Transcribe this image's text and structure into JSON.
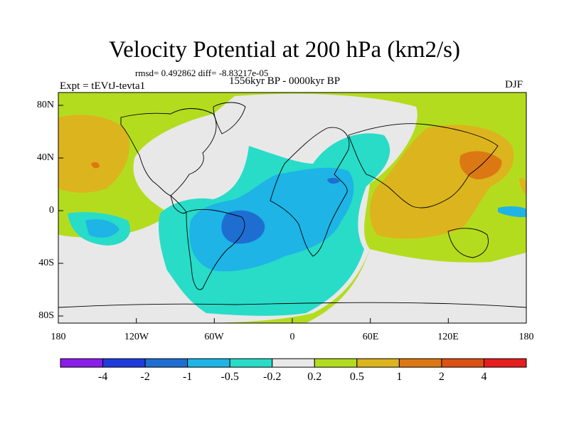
{
  "title": "Velocity Potential at 200 hPa (km2/s)",
  "stats": "rmsd= 0.492862 diff= -8.83217e-05",
  "experiment": "Expt = tEVtJ-tevta1",
  "period": "1556kyr BP - 0000kyr BP",
  "season": "DJF",
  "map": {
    "lon_ticks": [
      "180",
      "120W",
      "60W",
      "0",
      "60E",
      "120E",
      "180"
    ],
    "lat_ticks": [
      "80N",
      "40N",
      "0",
      "40S",
      "80S"
    ]
  },
  "colorbar": {
    "labels": [
      "-4",
      "-2",
      "-1",
      "-0.5",
      "-0.2",
      "0.2",
      "0.5",
      "1",
      "2",
      "4"
    ],
    "colors": [
      "#8a1ee8",
      "#1e3cdc",
      "#1e6ed2",
      "#1eb4e6",
      "#28dcc8",
      "#e8e8e8",
      "#b4dc1e",
      "#dcb41e",
      "#dc7814",
      "#dc5014",
      "#e61e1e"
    ]
  },
  "field_colors": {
    "neg_strong": "#1e6ed2",
    "neg_mid": "#1eb4e6",
    "neg_weak": "#28dcc8",
    "neutral": "#e8e8e8",
    "pos_weak": "#b4dc1e",
    "pos_mid": "#dcb41e",
    "pos_strong": "#dc7814"
  }
}
